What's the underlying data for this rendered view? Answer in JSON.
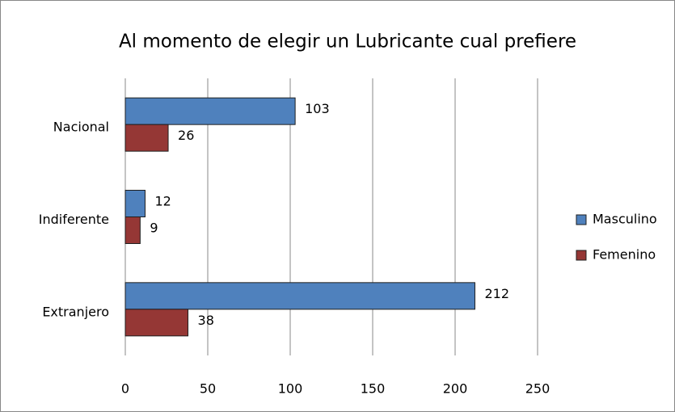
{
  "chart_data": {
    "type": "bar",
    "orientation": "horizontal",
    "title": "Al momento de elegir un Lubricante cual prefiere",
    "categories": [
      "Nacional",
      "Indiferente",
      "Extranjero"
    ],
    "series": [
      {
        "name": "Masculino",
        "color": "#4f81bd",
        "values": [
          103,
          12,
          212
        ]
      },
      {
        "name": "Femenino",
        "color": "#953735",
        "values": [
          26,
          9,
          38
        ]
      }
    ],
    "xlim": [
      0,
      250
    ],
    "xticks": [
      0,
      50,
      100,
      150,
      200,
      250
    ],
    "grid": true,
    "legend": "right"
  }
}
